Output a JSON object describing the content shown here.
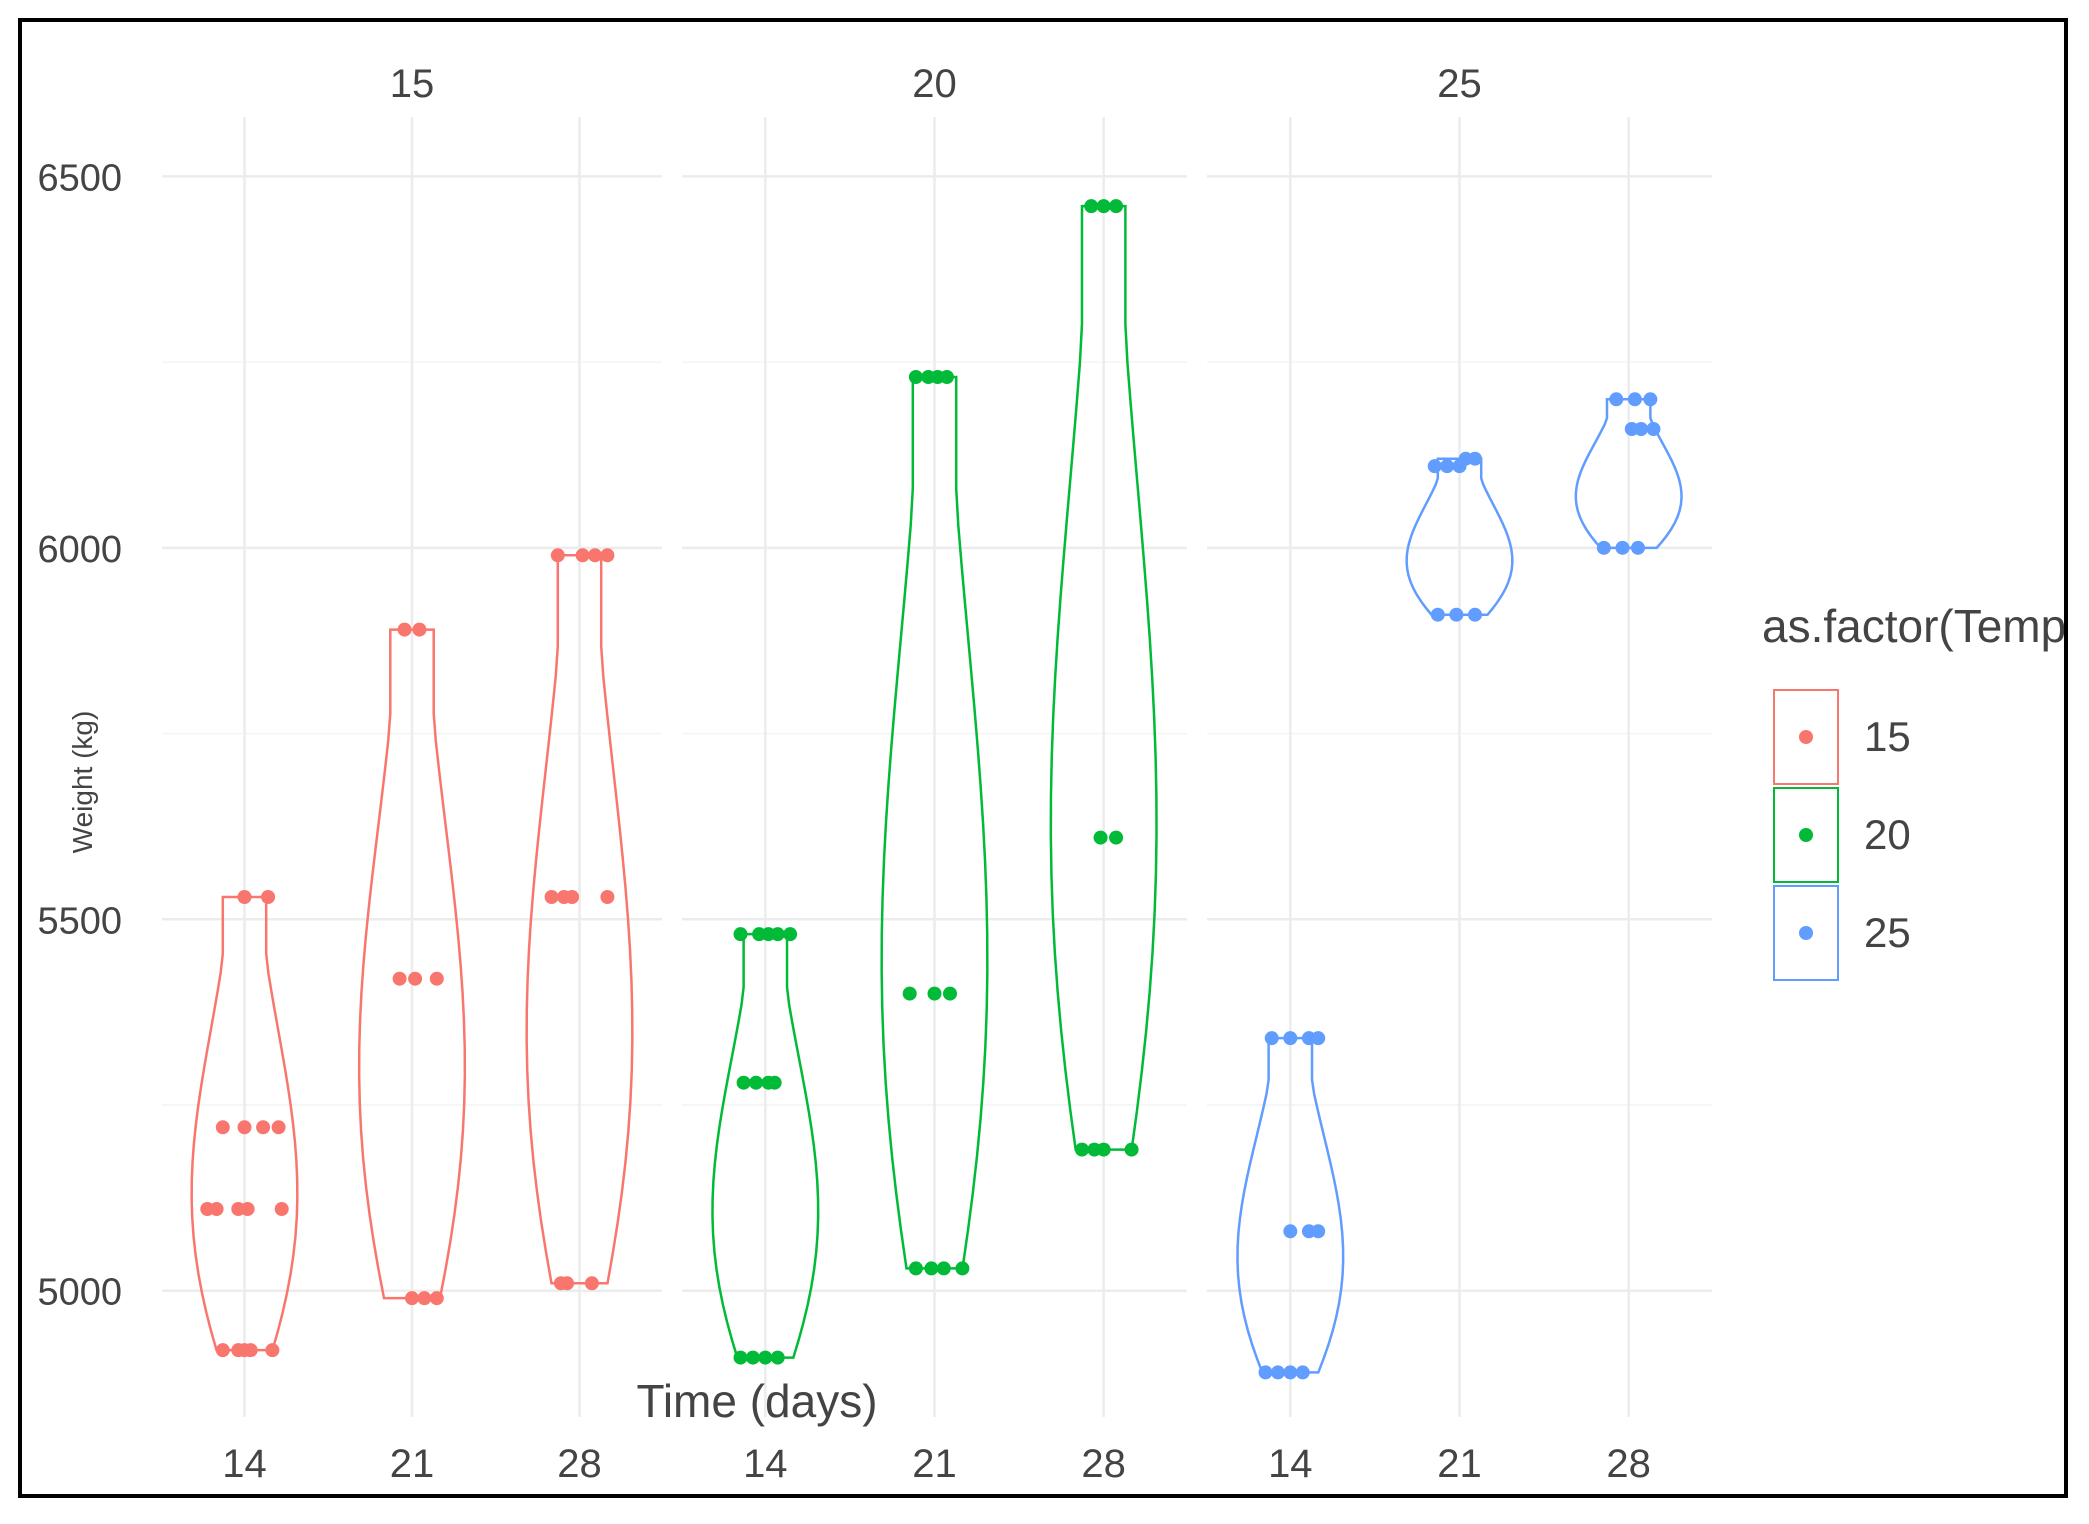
{
  "chart_data": {
    "type": "violin",
    "title": "",
    "xlabel": "Time (days)",
    "ylabel": "Weight (kg)",
    "ylim": [
      4830,
      6580
    ],
    "yticks": [
      5000,
      5500,
      6000,
      6500
    ],
    "facets": [
      "15",
      "20",
      "25"
    ],
    "categories": [
      "14",
      "21",
      "28"
    ],
    "legend": {
      "title": "as.factor(Temp)",
      "position": "right",
      "entries": [
        "15",
        "20",
        "25"
      ]
    },
    "colors": {
      "15": "#F8766D",
      "20": "#00BA38",
      "25": "#619CFF"
    },
    "series": [
      {
        "name": "15",
        "groups": [
          {
            "time": "14",
            "min": 4920,
            "max": 5530,
            "points": [
              [
                0,
                4920
              ],
              [
                -0.35,
                4920
              ],
              [
                -0.1,
                4920
              ],
              [
                0.1,
                4920
              ],
              [
                0.45,
                4920
              ],
              [
                -0.6,
                5110
              ],
              [
                -0.45,
                5110
              ],
              [
                -0.1,
                5110
              ],
              [
                0.05,
                5110
              ],
              [
                0.6,
                5110
              ],
              [
                -0.35,
                5220
              ],
              [
                0,
                5220
              ],
              [
                0.3,
                5220
              ],
              [
                0.55,
                5220
              ],
              [
                0,
                5530
              ],
              [
                0.38,
                5530
              ]
            ]
          },
          {
            "time": "21",
            "min": 4990,
            "max": 5890,
            "points": [
              [
                0,
                4990
              ],
              [
                0.2,
                4990
              ],
              [
                0.4,
                4990
              ],
              [
                -0.2,
                5420
              ],
              [
                0.05,
                5420
              ],
              [
                0.4,
                5420
              ],
              [
                -0.12,
                5890
              ],
              [
                0.12,
                5890
              ]
            ]
          },
          {
            "time": "28",
            "min": 5010,
            "max": 5990,
            "points": [
              [
                -0.3,
                5010
              ],
              [
                -0.2,
                5010
              ],
              [
                0.2,
                5010
              ],
              [
                -0.45,
                5530
              ],
              [
                -0.25,
                5530
              ],
              [
                -0.12,
                5530
              ],
              [
                0.45,
                5530
              ],
              [
                -0.35,
                5990
              ],
              [
                0.05,
                5990
              ],
              [
                0.25,
                5990
              ],
              [
                0.45,
                5990
              ]
            ]
          }
        ]
      },
      {
        "name": "20",
        "groups": [
          {
            "time": "14",
            "min": 4910,
            "max": 5480,
            "points": [
              [
                -0.4,
                4910
              ],
              [
                -0.2,
                4910
              ],
              [
                0,
                4910
              ],
              [
                0.2,
                4910
              ],
              [
                -0.35,
                5280
              ],
              [
                -0.15,
                5280
              ],
              [
                0.05,
                5280
              ],
              [
                0.15,
                5280
              ],
              [
                -0.4,
                5480
              ],
              [
                -0.1,
                5480
              ],
              [
                0.05,
                5480
              ],
              [
                0.2,
                5480
              ],
              [
                0.4,
                5480
              ]
            ]
          },
          {
            "time": "21",
            "min": 5030,
            "max": 6230,
            "points": [
              [
                -0.3,
                5030
              ],
              [
                -0.05,
                5030
              ],
              [
                0.15,
                5030
              ],
              [
                0.45,
                5030
              ],
              [
                -0.4,
                5400
              ],
              [
                0,
                5400
              ],
              [
                0.25,
                5400
              ],
              [
                -0.3,
                6230
              ],
              [
                -0.1,
                6230
              ],
              [
                0.05,
                6230
              ],
              [
                0.2,
                6230
              ]
            ]
          },
          {
            "time": "28",
            "min": 5190,
            "max": 6460,
            "points": [
              [
                -0.35,
                5190
              ],
              [
                -0.15,
                5190
              ],
              [
                0,
                5190
              ],
              [
                0.45,
                5190
              ],
              [
                -0.05,
                5610
              ],
              [
                0.2,
                5610
              ],
              [
                -0.2,
                6460
              ],
              [
                0,
                6460
              ],
              [
                0.2,
                6460
              ]
            ]
          }
        ]
      },
      {
        "name": "25",
        "groups": [
          {
            "time": "14",
            "min": 4890,
            "max": 5340,
            "points": [
              [
                -0.4,
                4890
              ],
              [
                -0.2,
                4890
              ],
              [
                0,
                4890
              ],
              [
                0.2,
                4890
              ],
              [
                -0.3,
                5340
              ],
              [
                0,
                5340
              ],
              [
                0.3,
                5340
              ],
              [
                0.45,
                5340
              ],
              [
                0,
                5080
              ],
              [
                0.3,
                5080
              ],
              [
                0.45,
                5080
              ]
            ]
          },
          {
            "time": "21",
            "min": 5910,
            "max": 6120,
            "points": [
              [
                -0.35,
                5910
              ],
              [
                -0.05,
                5910
              ],
              [
                0.25,
                5910
              ],
              [
                -0.4,
                6110
              ],
              [
                -0.2,
                6110
              ],
              [
                0,
                6110
              ],
              [
                0.1,
                6120
              ],
              [
                0.25,
                6120
              ]
            ]
          },
          {
            "time": "28",
            "min": 6000,
            "max": 6200,
            "points": [
              [
                -0.4,
                6000
              ],
              [
                -0.1,
                6000
              ],
              [
                0.15,
                6000
              ],
              [
                -0.2,
                6200
              ],
              [
                0.1,
                6200
              ],
              [
                0.35,
                6200
              ],
              [
                0.05,
                6160
              ],
              [
                0.2,
                6160
              ],
              [
                0.4,
                6160
              ]
            ]
          }
        ]
      }
    ]
  }
}
